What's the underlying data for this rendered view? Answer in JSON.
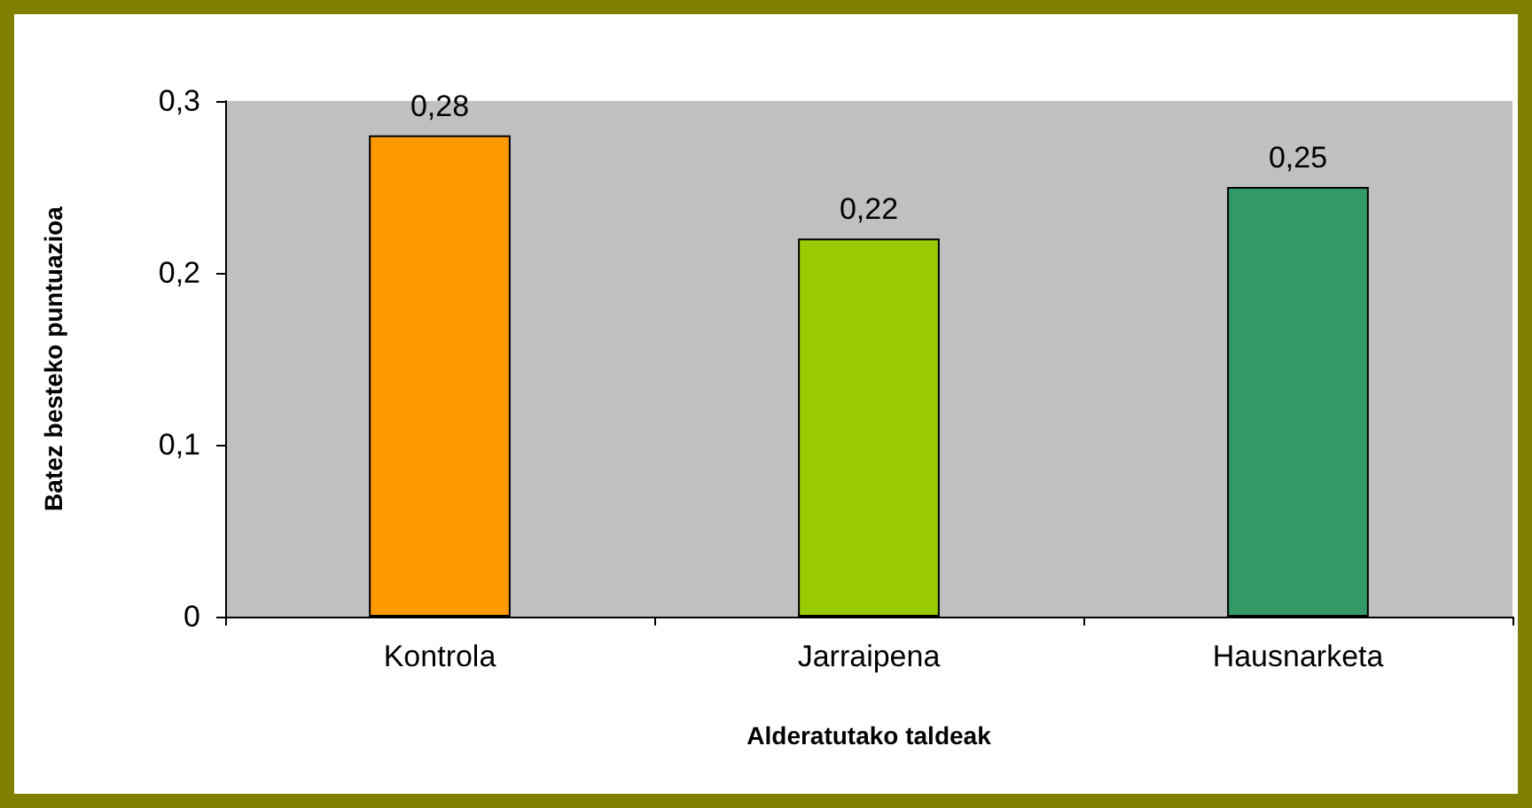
{
  "chart_data": {
    "type": "bar",
    "xlabel": "Alderatutako taldeak",
    "ylabel": "Batez besteko puntuazioa",
    "categories": [
      "Kontrola",
      "Jarraipena",
      "Hausnarketa"
    ],
    "values": [
      0.28,
      0.22,
      0.25
    ],
    "colors": [
      "#ff9900",
      "#99cc00",
      "#339966"
    ],
    "value_labels": [
      "0,28",
      "0,22",
      "0,25"
    ],
    "ylim": [
      0,
      0.3
    ],
    "yticks": [
      0,
      {
        "value": 0.1,
        "label": "0,1"
      },
      {
        "value": 0.2,
        "label": "0,2"
      },
      {
        "value": 0.3,
        "label": "0,3"
      }
    ],
    "grid": false
  }
}
